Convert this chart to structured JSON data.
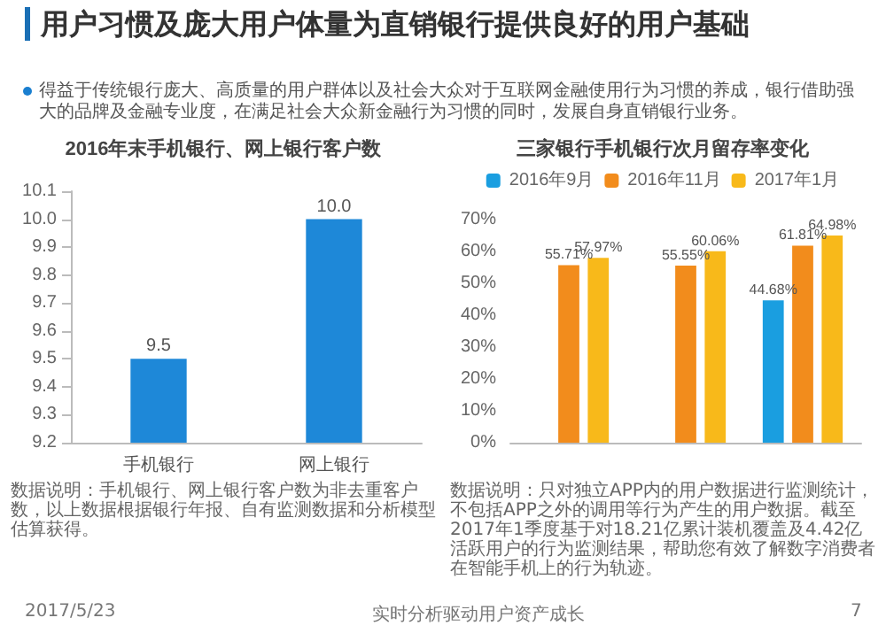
{
  "chart_data": [
    {
      "type": "other",
      "title": "用户习惯及庞大用户体量为直销银行提供良好的用户基础",
      "annotations": [
        "得益于传统银行庞大、高质量的用户群体以及社会大众对于互联网金融使用行为习惯的养成，银行借助强大的品牌及金融专业度，在满足社会大众新金融行为习惯的同时，发展自身直销银行业务。",
        "2017/5/23",
        "实时分析驱动用户资产成长",
        "7"
      ]
    },
    {
      "type": "bar",
      "title": "2016年末手机银行、网上银行客户数",
      "categories": [
        "手机银行",
        "网上银行"
      ],
      "values": [
        9.5,
        10.0
      ],
      "value_labels": [
        "9.5",
        "10.0"
      ],
      "color": "#1e88d8",
      "ylim": [
        9.2,
        10.1
      ],
      "yticks": [
        9.2,
        9.3,
        9.4,
        9.5,
        9.6,
        9.7,
        9.8,
        9.9,
        {
          "value": 10.0,
          "label": "10.0"
        },
        10.1
      ],
      "grid": false,
      "annotations": [
        "数据说明：手机银行、网上银行客户数为非去重客户数，以上数据根据银行年报、自有监测数据和分析模型估算获得。"
      ]
    },
    {
      "type": "bar",
      "title": "三家银行手机银行次月留存率变化",
      "categories": [
        null,
        null,
        null
      ],
      "series": [
        {
          "name": "2016年9月",
          "color": "#1a9ee0",
          "values": [
            null,
            null,
            44.68
          ],
          "value_labels": [
            null,
            null,
            "44.68%"
          ]
        },
        {
          "name": "2016年11月",
          "color": "#f28c1c",
          "values": [
            55.71,
            55.55,
            61.81
          ],
          "value_labels": [
            "55.71%",
            "55.55%",
            "61.81%"
          ]
        },
        {
          "name": "2017年1月",
          "color": "#f8b91a",
          "values": [
            57.97,
            60.06,
            64.98
          ],
          "value_labels": [
            "57.97%",
            "60.06%",
            "64.98%"
          ]
        }
      ],
      "ylim": [
        0,
        70
      ],
      "yticks": [
        {
          "value": 0,
          "label": "0%"
        },
        {
          "value": 10,
          "label": "10%"
        },
        {
          "value": 20,
          "label": "20%"
        },
        {
          "value": 30,
          "label": "30%"
        },
        {
          "value": 40,
          "label": "40%"
        },
        {
          "value": 50,
          "label": "50%"
        },
        {
          "value": 60,
          "label": "60%"
        },
        {
          "value": 70,
          "label": "70%"
        }
      ],
      "grid": false,
      "legend": "top",
      "annotations": [
        "数据说明：只对独立APP内的用户数据进行监测统计，不包括APP之外的调用等行为产生的用户数据。截至2017年1季度基于对18.21亿累计装机覆盖及4.42亿活跃用户的行为监测结果，帮助您有效了解数字消费者在智能手机上的行为轨迹。"
      ]
    }
  ]
}
